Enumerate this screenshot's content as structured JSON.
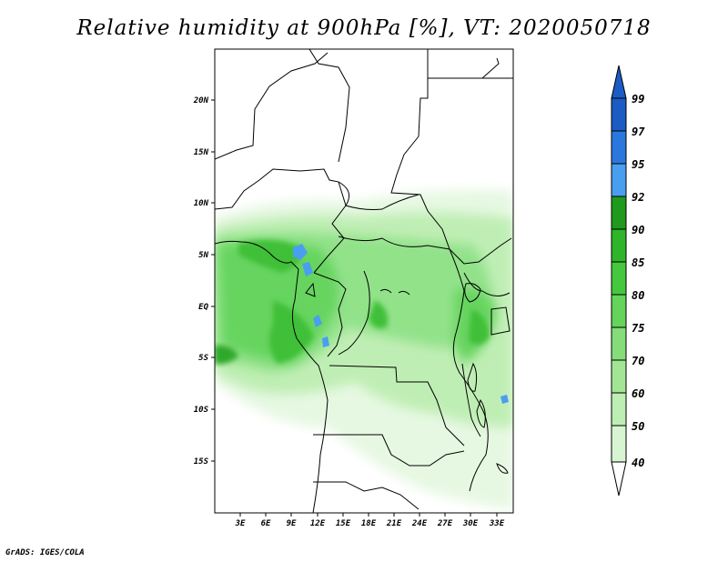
{
  "title": "Relative humidity at 900hPa [%], VT: 2020050718",
  "credit": "GrADS: IGES/COLA",
  "map": {
    "lat_labels": [
      "20N",
      "15N",
      "10N",
      "5N",
      "EQ",
      "5S",
      "10S",
      "15S"
    ],
    "lon_labels": [
      "3E",
      "6E",
      "9E",
      "12E",
      "15E",
      "18E",
      "21E",
      "24E",
      "27E",
      "30E",
      "33E"
    ]
  },
  "colorbar": {
    "levels": [
      "40",
      "50",
      "60",
      "70",
      "75",
      "80",
      "85",
      "90",
      "92",
      "95",
      "97",
      "99"
    ],
    "colors": [
      "#f0fbee",
      "#d6f5d0",
      "#bdeeb3",
      "#a2e695",
      "#84dd78",
      "#64d45a",
      "#45c73e",
      "#2eb52a",
      "#1f9a1c",
      "#4a9ef0",
      "#2a78de",
      "#1a5cc4"
    ]
  }
}
